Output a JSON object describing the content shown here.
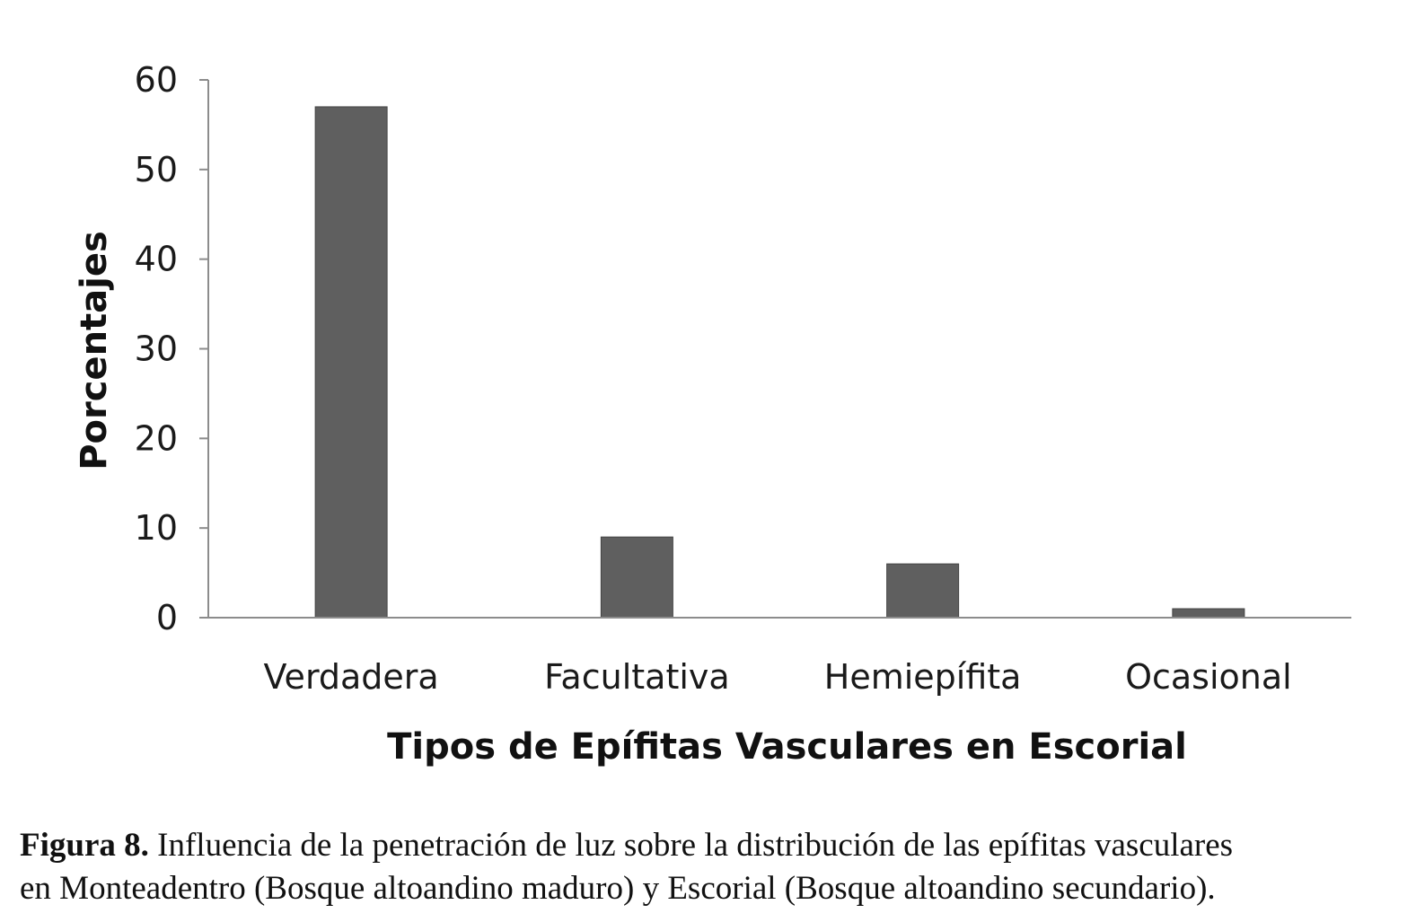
{
  "chart_data": {
    "type": "bar",
    "categories": [
      "Verdadera",
      "Facultativa",
      "Hemiepífita",
      "Ocasional"
    ],
    "values": [
      57,
      9,
      6,
      1
    ],
    "title": "",
    "xlabel": "Tipos de Epífitas Vasculares en Escorial",
    "ylabel": "Porcentajes",
    "ylim": [
      0,
      60
    ],
    "yticks": [
      0,
      10,
      20,
      30,
      40,
      50,
      60
    ],
    "grid": false,
    "bar_color": "#5f5f5f",
    "axis_color": "#8c8c8c"
  },
  "caption": {
    "label": "Figura 8.",
    "line1": " Influencia de la penetración de luz sobre la distribución de las epífitas vasculares",
    "line2": "en Monteadentro (Bosque altoandino maduro) y Escorial (Bosque altoandino secundario)."
  }
}
